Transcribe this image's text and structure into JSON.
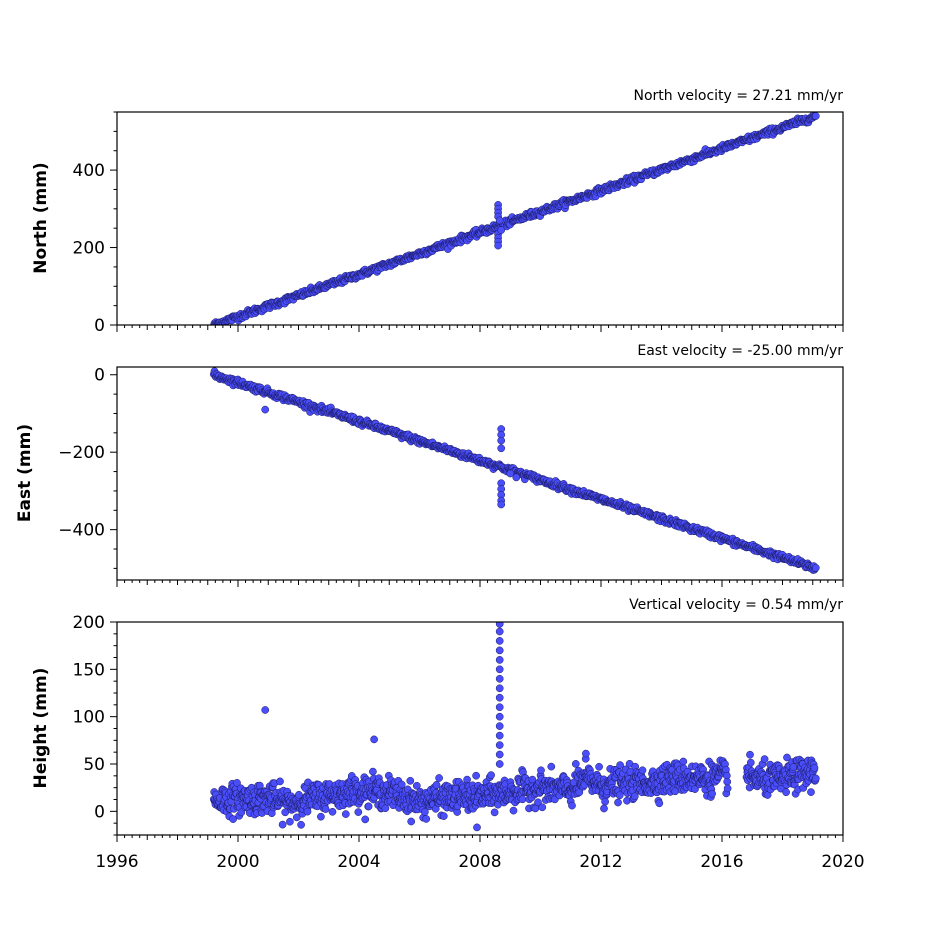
{
  "chart_data": [
    {
      "type": "scatter",
      "panel": "north",
      "title": "North velocity = 27.21 mm/yr",
      "ylabel": "North (mm)",
      "xlim": [
        1996,
        2020
      ],
      "ylim": [
        0,
        550
      ],
      "y_ticks": [
        0,
        200,
        400
      ],
      "velocity": 27.21,
      "segments": [
        {
          "start": [
            1999.2,
            0
          ],
          "end": [
            2019.1,
            540
          ],
          "noise": 4
        }
      ],
      "outliers": [
        [
          2008.6,
          310
        ],
        [
          2008.6,
          300
        ],
        [
          2008.6,
          290
        ],
        [
          2008.6,
          280
        ],
        [
          2008.65,
          270
        ],
        [
          2008.6,
          235
        ],
        [
          2008.6,
          225
        ],
        [
          2008.6,
          215
        ],
        [
          2008.6,
          205
        ],
        [
          2008.7,
          245
        ]
      ],
      "color": "#4a4dfa"
    },
    {
      "type": "scatter",
      "panel": "east",
      "title": "East velocity = -25.00 mm/yr",
      "ylabel": "East (mm)",
      "xlim": [
        1996,
        2020
      ],
      "ylim": [
        -530,
        20
      ],
      "y_ticks": [
        0,
        -200,
        -400
      ],
      "velocity": -25.0,
      "segments": [
        {
          "start": [
            1999.2,
            0
          ],
          "end": [
            2019.1,
            -500
          ],
          "noise": 4
        }
      ],
      "outliers": [
        [
          2000.9,
          -90
        ],
        [
          2008.7,
          -140
        ],
        [
          2008.7,
          -155
        ],
        [
          2008.7,
          -170
        ],
        [
          2008.7,
          -190
        ],
        [
          2008.7,
          -280
        ],
        [
          2008.7,
          -295
        ],
        [
          2008.7,
          -310
        ],
        [
          2008.7,
          -325
        ],
        [
          2008.7,
          -335
        ],
        [
          2009.0,
          -255
        ],
        [
          2009.2,
          -265
        ]
      ],
      "color": "#4a4dfa"
    },
    {
      "type": "scatter",
      "panel": "height",
      "title": "Vertical velocity = 0.54 mm/yr",
      "ylabel": "Height (mm)",
      "xlim": [
        1996,
        2020
      ],
      "ylim": [
        -25,
        200
      ],
      "y_ticks": [
        0,
        50,
        100,
        150,
        200
      ],
      "x_ticks": [
        1996,
        2000,
        2004,
        2008,
        2012,
        2016,
        2020
      ],
      "velocity": 0.54,
      "baseline_profile": [
        [
          1999.2,
          12
        ],
        [
          2001.0,
          14
        ],
        [
          2001.7,
          8
        ],
        [
          2002.5,
          14
        ],
        [
          2004.0,
          22
        ],
        [
          2005.0,
          20
        ],
        [
          2006.0,
          10
        ],
        [
          2007.0,
          15
        ],
        [
          2008.0,
          16
        ],
        [
          2009.0,
          20
        ],
        [
          2010.0,
          25
        ],
        [
          2011.0,
          22
        ],
        [
          2011.5,
          35
        ],
        [
          2012.0,
          28
        ],
        [
          2013.5,
          30
        ],
        [
          2014.5,
          36
        ],
        [
          2015.5,
          35
        ],
        [
          2016.2,
          38
        ],
        [
          2016.5,
          null
        ],
        [
          2016.8,
          38
        ],
        [
          2017.5,
          32
        ],
        [
          2018.5,
          38
        ],
        [
          2019.1,
          42
        ]
      ],
      "noise": 8,
      "outliers": [
        [
          2000.9,
          107
        ],
        [
          2004.5,
          76
        ],
        [
          2011.5,
          61
        ],
        [
          2007.9,
          -17
        ],
        [
          2012.1,
          3
        ],
        [
          2008.65,
          198
        ],
        [
          2008.65,
          190
        ],
        [
          2008.65,
          180
        ],
        [
          2008.65,
          170
        ],
        [
          2008.65,
          160
        ],
        [
          2008.65,
          150
        ],
        [
          2008.65,
          140
        ],
        [
          2008.65,
          130
        ],
        [
          2008.65,
          120
        ],
        [
          2008.65,
          110
        ],
        [
          2008.65,
          100
        ],
        [
          2008.65,
          90
        ],
        [
          2008.65,
          80
        ],
        [
          2008.65,
          70
        ],
        [
          2008.65,
          60
        ],
        [
          2008.65,
          50
        ]
      ],
      "color": "#4a4dfa"
    }
  ]
}
